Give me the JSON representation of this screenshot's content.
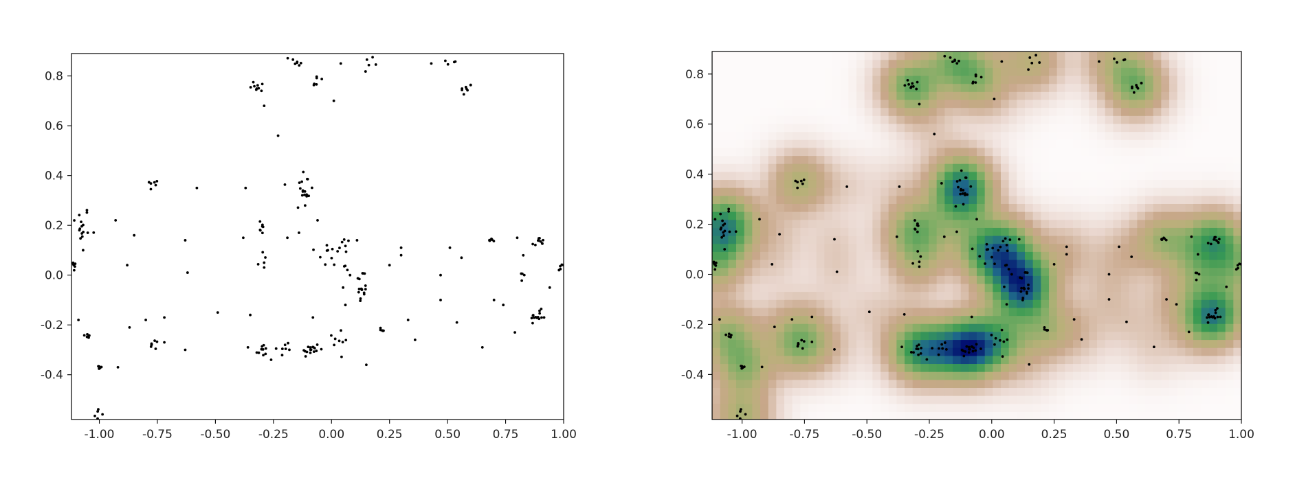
{
  "chart_data": [
    {
      "type": "scatter",
      "name": "scatter-panel",
      "title": "",
      "xlabel": "",
      "ylabel": "",
      "xlim": [
        -1.12,
        1.0
      ],
      "ylim": [
        -0.58,
        0.89
      ],
      "xticks": [
        "-1.00",
        "-0.75",
        "-0.50",
        "-0.25",
        "0.00",
        "0.25",
        "0.50",
        "0.75",
        "1.00"
      ],
      "xtick_values": [
        -1.0,
        -0.75,
        -0.5,
        -0.25,
        0.0,
        0.25,
        0.5,
        0.75,
        1.0
      ],
      "yticks": [
        "0.8",
        "0.6",
        "0.4",
        "0.2",
        "0.0",
        "-0.2",
        "-0.4"
      ],
      "ytick_values": [
        0.8,
        0.6,
        0.4,
        0.2,
        0.0,
        -0.2,
        -0.4
      ],
      "marker_color": "#000000",
      "clusters": [
        {
          "cx": -1.08,
          "cy": 0.2,
          "sx": 0.02,
          "sy": 0.04,
          "n": 14
        },
        {
          "cx": -1.11,
          "cy": 0.04,
          "sx": 0.005,
          "sy": 0.012,
          "n": 6
        },
        {
          "cx": -1.05,
          "cy": -0.245,
          "sx": 0.008,
          "sy": 0.008,
          "n": 6
        },
        {
          "cx": -1.0,
          "cy": -0.375,
          "sx": 0.008,
          "sy": 0.006,
          "n": 6
        },
        {
          "cx": -0.99,
          "cy": -0.54,
          "sx": 0.02,
          "sy": 0.03,
          "n": 6
        },
        {
          "cx": -0.77,
          "cy": 0.36,
          "sx": 0.012,
          "sy": 0.012,
          "n": 6
        },
        {
          "cx": -0.76,
          "cy": -0.28,
          "sx": 0.012,
          "sy": 0.01,
          "n": 7
        },
        {
          "cx": -0.31,
          "cy": 0.755,
          "sx": 0.02,
          "sy": 0.015,
          "n": 9
        },
        {
          "cx": -0.3,
          "cy": 0.195,
          "sx": 0.01,
          "sy": 0.015,
          "n": 7
        },
        {
          "cx": -0.3,
          "cy": 0.06,
          "sx": 0.012,
          "sy": 0.025,
          "n": 5
        },
        {
          "cx": -0.3,
          "cy": -0.305,
          "sx": 0.012,
          "sy": 0.015,
          "n": 9
        },
        {
          "cx": -0.15,
          "cy": 0.86,
          "sx": 0.015,
          "sy": 0.01,
          "n": 7
        },
        {
          "cx": -0.07,
          "cy": 0.78,
          "sx": 0.02,
          "sy": 0.02,
          "n": 6
        },
        {
          "cx": -0.12,
          "cy": 0.34,
          "sx": 0.02,
          "sy": 0.05,
          "n": 18
        },
        {
          "cx": -0.09,
          "cy": -0.3,
          "sx": 0.02,
          "sy": 0.015,
          "n": 16
        },
        {
          "cx": -0.2,
          "cy": -0.3,
          "sx": 0.025,
          "sy": 0.025,
          "n": 6
        },
        {
          "cx": 0.03,
          "cy": 0.09,
          "sx": 0.05,
          "sy": 0.04,
          "n": 18
        },
        {
          "cx": 0.13,
          "cy": -0.05,
          "sx": 0.012,
          "sy": 0.04,
          "n": 16
        },
        {
          "cx": 0.04,
          "cy": -0.26,
          "sx": 0.025,
          "sy": 0.05,
          "n": 8
        },
        {
          "cx": 0.17,
          "cy": 0.86,
          "sx": 0.015,
          "sy": 0.01,
          "n": 5
        },
        {
          "cx": 0.22,
          "cy": -0.22,
          "sx": 0.012,
          "sy": 0.006,
          "n": 5
        },
        {
          "cx": 0.52,
          "cy": 0.855,
          "sx": 0.012,
          "sy": 0.006,
          "n": 4
        },
        {
          "cx": 0.58,
          "cy": 0.745,
          "sx": 0.012,
          "sy": 0.015,
          "n": 8
        },
        {
          "cx": 0.69,
          "cy": 0.14,
          "sx": 0.012,
          "sy": 0.004,
          "n": 6
        },
        {
          "cx": 0.89,
          "cy": 0.13,
          "sx": 0.015,
          "sy": 0.012,
          "n": 10
        },
        {
          "cx": 0.89,
          "cy": -0.165,
          "sx": 0.015,
          "sy": 0.012,
          "n": 14
        },
        {
          "cx": 0.82,
          "cy": 0.01,
          "sx": 0.01,
          "sy": 0.03,
          "n": 5
        },
        {
          "cx": 0.99,
          "cy": 0.04,
          "sx": 0.006,
          "sy": 0.008,
          "n": 4
        }
      ],
      "isolated_points": [
        [
          -1.05,
          0.17
        ],
        [
          -1.07,
          0.1
        ],
        [
          -1.09,
          -0.18
        ],
        [
          -0.93,
          0.22
        ],
        [
          -0.92,
          -0.37
        ],
        [
          -0.88,
          0.04
        ],
        [
          -0.85,
          0.16
        ],
        [
          -0.87,
          -0.21
        ],
        [
          -0.8,
          -0.18
        ],
        [
          -0.72,
          -0.27
        ],
        [
          -0.63,
          0.14
        ],
        [
          -0.62,
          0.01
        ],
        [
          -0.63,
          -0.3
        ],
        [
          -0.58,
          0.35
        ],
        [
          -0.49,
          -0.15
        ],
        [
          -0.37,
          0.35
        ],
        [
          -0.38,
          0.15
        ],
        [
          -0.35,
          -0.16
        ],
        [
          -0.36,
          -0.29
        ],
        [
          -0.29,
          0.68
        ],
        [
          -0.23,
          0.56
        ],
        [
          -0.19,
          0.15
        ],
        [
          -0.2,
          -0.28
        ],
        [
          -0.06,
          0.22
        ],
        [
          -0.08,
          -0.17
        ],
        [
          0.04,
          0.85
        ],
        [
          0.01,
          0.7
        ],
        [
          0.06,
          -0.12
        ],
        [
          0.11,
          0.14
        ],
        [
          0.15,
          -0.36
        ],
        [
          0.25,
          0.04
        ],
        [
          0.3,
          0.11
        ],
        [
          0.3,
          0.08
        ],
        [
          0.33,
          -0.18
        ],
        [
          0.36,
          -0.26
        ],
        [
          0.43,
          0.85
        ],
        [
          0.47,
          0.0
        ],
        [
          0.47,
          -0.1
        ],
        [
          0.51,
          0.11
        ],
        [
          0.54,
          -0.19
        ],
        [
          0.56,
          0.07
        ],
        [
          0.65,
          -0.29
        ],
        [
          0.7,
          -0.1
        ],
        [
          0.74,
          -0.12
        ],
        [
          0.79,
          -0.23
        ],
        [
          0.8,
          0.15
        ],
        [
          0.94,
          -0.05
        ],
        [
          0.98,
          0.02
        ],
        [
          -0.72,
          -0.17
        ],
        [
          0.05,
          -0.05
        ],
        [
          -0.26,
          -0.34
        ],
        [
          -0.14,
          0.17
        ],
        [
          -0.02,
          0.12
        ],
        [
          0.08,
          0.0
        ]
      ]
    },
    {
      "type": "heatmap",
      "name": "density-panel",
      "title": "",
      "xlabel": "",
      "ylabel": "",
      "xlim": [
        -1.12,
        1.0
      ],
      "ylim": [
        -0.58,
        0.89
      ],
      "xticks": [
        "-1.00",
        "-0.75",
        "-0.50",
        "-0.25",
        "0.00",
        "0.25",
        "0.50",
        "0.75",
        "1.00"
      ],
      "xtick_values": [
        -1.0,
        -0.75,
        -0.5,
        -0.25,
        0.0,
        0.25,
        0.5,
        0.75,
        1.0
      ],
      "yticks": [
        "0.8",
        "0.6",
        "0.4",
        "0.2",
        "0.0",
        "-0.2",
        "-0.4"
      ],
      "ytick_values": [
        0.8,
        0.6,
        0.4,
        0.2,
        0.0,
        -0.2,
        -0.4
      ],
      "colormap": "gist_earth_r",
      "colormap_stops": [
        [
          0.0,
          "#fdfafa"
        ],
        [
          0.15,
          "#ead8d0"
        ],
        [
          0.32,
          "#c8a78a"
        ],
        [
          0.45,
          "#b9b079"
        ],
        [
          0.58,
          "#82ae66"
        ],
        [
          0.72,
          "#389a52"
        ],
        [
          0.85,
          "#1f6a8a"
        ],
        [
          1.0,
          "#000b6e"
        ]
      ],
      "overlay": "same points as scatter-panel"
    }
  ]
}
